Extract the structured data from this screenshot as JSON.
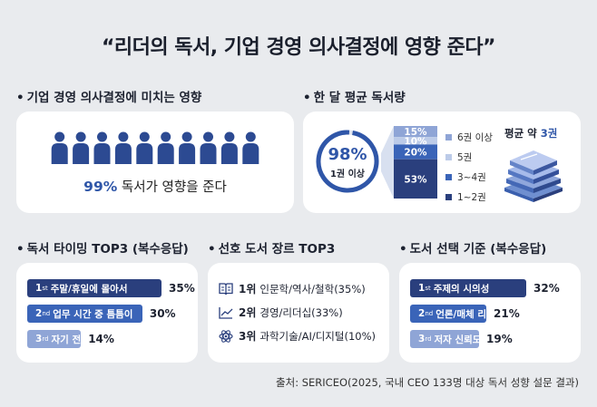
{
  "title": "“리더의 독서, 기업 경영 의사결정에 영향 준다”",
  "sections": {
    "influence": "기업 경영 의사결정에 미치는 영향",
    "monthly": "한 달 평균 독서량",
    "timing": "독서 타이밍 TOP3 (복수응답)",
    "genre": "선호 도서 장르 TOP3",
    "criteria": "도서 선택 기준 (복수응답)"
  },
  "influence": {
    "pct": "99%",
    "text": "독서가 영향을 준다",
    "people_count": 10,
    "highlighted": 10
  },
  "monthly": {
    "donut_value": 98,
    "donut_label": "98%",
    "donut_sub": "1권 이상",
    "avg_prefix": "평균 약",
    "avg_value": "3권"
  },
  "colors": {
    "primary": "#2f56a8",
    "navy": "#2a3f7d",
    "mid": "#3a64b8",
    "light": "#8fa5d6",
    "pale": "#bccbe8",
    "people": "#2c4a92"
  },
  "chart_data": [
    {
      "type": "bar",
      "title": "한 달 평균 독서량",
      "categories": [
        "1~2권",
        "3~4권",
        "5권",
        "6권 이상"
      ],
      "values": [
        53,
        20,
        10,
        15
      ],
      "labels": [
        "53%",
        "20%",
        "10%",
        "15%"
      ],
      "legend": [
        "6권 이상",
        "5권",
        "3~4권",
        "1~2권"
      ],
      "colors": [
        "#2a3f7d",
        "#3a64b8",
        "#bccbe8",
        "#8fa5d6"
      ],
      "stacked": true
    },
    {
      "type": "bar",
      "title": "독서 타이밍 TOP3 (복수응답)",
      "orientation": "horizontal",
      "categories": [
        "주말/휴일에 몰아서",
        "업무 시간 중 틈틈이",
        "자기 전"
      ],
      "ranks": [
        "1",
        "2",
        "3"
      ],
      "suffixes": [
        "st",
        "nd",
        "rd"
      ],
      "values": [
        35,
        30,
        14
      ],
      "labels": [
        "35%",
        "30%",
        "14%"
      ],
      "colors": [
        "#2a3f7d",
        "#3a64b8",
        "#8fa5d6"
      ]
    },
    {
      "type": "table",
      "title": "선호 도서 장르 TOP3",
      "ranks": [
        "1위",
        "2위",
        "3위"
      ],
      "items": [
        "인문학/역사/철학(35%)",
        "경영/리더십(33%)",
        "과학기술/AI/디지털(10%)"
      ],
      "values": [
        35,
        33,
        10
      ],
      "icons": [
        "book-icon",
        "chart-line-icon",
        "atom-icon"
      ]
    },
    {
      "type": "bar",
      "title": "도서 선택 기준 (복수응답)",
      "orientation": "horizontal",
      "categories": [
        "주제의 시의성",
        "언론/매체 리뷰",
        "저자 신뢰도"
      ],
      "ranks": [
        "1",
        "2",
        "3"
      ],
      "suffixes": [
        "st",
        "nd",
        "rd"
      ],
      "values": [
        32,
        21,
        19
      ],
      "labels": [
        "32%",
        "21%",
        "19%"
      ],
      "colors": [
        "#2a3f7d",
        "#3a64b8",
        "#8fa5d6"
      ]
    }
  ],
  "source": "출처: SERICEO(2025, 국내 CEO 133명 대상 독서 성향 설문 결과)"
}
